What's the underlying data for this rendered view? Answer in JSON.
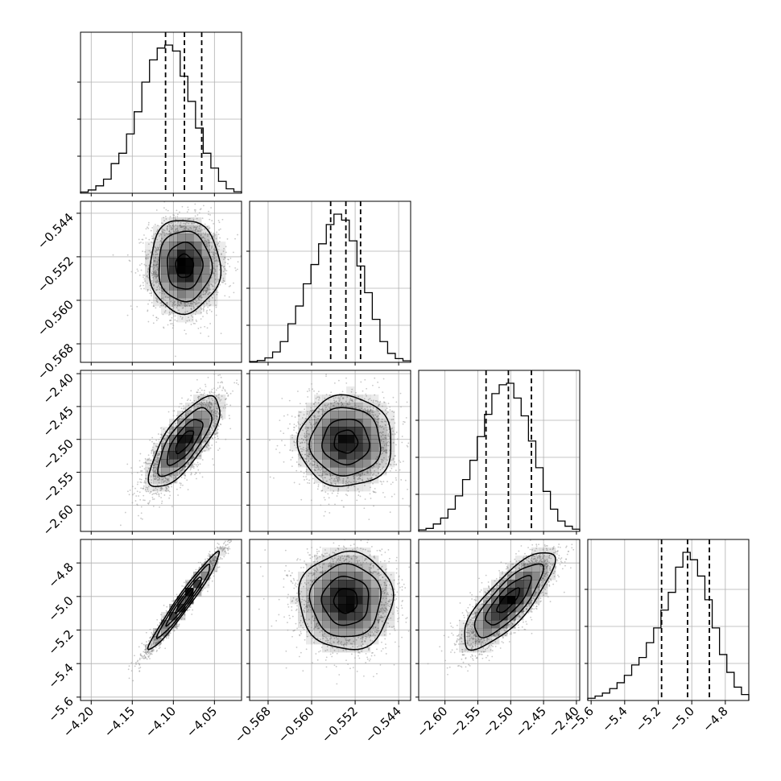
{
  "chart_data": {
    "type": "corner",
    "parameters": [
      {
        "ticks": [
          -4.2,
          -4.15,
          -4.1,
          -4.05
        ],
        "tick_labels": [
          "−4.20",
          "−4.15",
          "−4.10",
          "−4.05"
        ],
        "range": [
          -4.213,
          -4.017
        ],
        "quantiles": [
          -4.1095,
          -4.0865,
          -4.0655
        ],
        "hist_counts": [
          0.008,
          0.022,
          0.05,
          0.095,
          0.2,
          0.27,
          0.4,
          0.55,
          0.75,
          0.9,
          0.98,
          1.0,
          0.96,
          0.79,
          0.62,
          0.44,
          0.27,
          0.17,
          0.08,
          0.03,
          0.01
        ]
      },
      {
        "ticks": [
          -0.568,
          -0.56,
          -0.552,
          -0.544
        ],
        "tick_labels": [
          "−0.568",
          "−0.560",
          "−0.552",
          "−0.544"
        ],
        "range": [
          -0.5714,
          -0.5418
        ],
        "quantiles": [
          -0.5565,
          -0.5537,
          -0.551
        ],
        "hist_counts": [
          0.005,
          0.012,
          0.03,
          0.07,
          0.14,
          0.26,
          0.38,
          0.53,
          0.66,
          0.8,
          0.93,
          1.0,
          0.96,
          0.82,
          0.65,
          0.47,
          0.29,
          0.14,
          0.06,
          0.025,
          0.01
        ]
      },
      {
        "ticks": [
          -2.6,
          -2.55,
          -2.5,
          -2.45,
          -2.4
        ],
        "tick_labels": [
          "−2.60",
          "−2.55",
          "−2.50",
          "−2.45",
          "−2.40"
        ],
        "range": [
          -2.64,
          -2.395
        ],
        "quantiles": [
          -2.5375,
          -2.5035,
          -2.4685
        ],
        "hist_counts": [
          0.01,
          0.02,
          0.05,
          0.09,
          0.15,
          0.24,
          0.35,
          0.48,
          0.64,
          0.79,
          0.93,
          0.99,
          1.0,
          0.9,
          0.78,
          0.61,
          0.43,
          0.27,
          0.15,
          0.07,
          0.035,
          0.015
        ]
      },
      {
        "ticks": [
          -5.6,
          -5.4,
          -5.2,
          -5.0,
          -4.8
        ],
        "tick_labels": [
          "−5.6",
          "−5.4",
          "−5.2",
          "−5.0",
          "−4.8"
        ],
        "range": [
          -5.62,
          -4.66
        ],
        "quantiles": [
          -5.18,
          -5.025,
          -4.895
        ],
        "hist_counts": [
          0.015,
          0.03,
          0.05,
          0.08,
          0.12,
          0.17,
          0.24,
          0.29,
          0.39,
          0.49,
          0.61,
          0.73,
          0.9,
          1.0,
          0.95,
          0.84,
          0.68,
          0.49,
          0.31,
          0.19,
          0.09,
          0.04
        ]
      }
    ],
    "pairs": [
      {
        "x": 0,
        "y": 1,
        "center": [
          -4.0865,
          -0.5537
        ],
        "sd": [
          0.0215,
          0.0043
        ],
        "rho": 0.0
      },
      {
        "x": 0,
        "y": 2,
        "center": [
          -4.0865,
          -2.5035
        ],
        "sd": [
          0.0215,
          0.0345
        ],
        "rho": 0.75
      },
      {
        "x": 1,
        "y": 2,
        "center": [
          -0.5537,
          -2.5035
        ],
        "sd": [
          0.0043,
          0.0345
        ],
        "rho": 0.0
      },
      {
        "x": 0,
        "y": 3,
        "center": [
          -4.0865,
          -5.025
        ],
        "sd": [
          0.0215,
          0.145
        ],
        "rho": 0.97
      },
      {
        "x": 1,
        "y": 3,
        "center": [
          -0.5537,
          -5.025
        ],
        "sd": [
          0.0043,
          0.145
        ],
        "rho": 0.0
      },
      {
        "x": 2,
        "y": 3,
        "center": [
          -2.5035,
          -5.025
        ],
        "sd": [
          0.0345,
          0.145
        ],
        "rho": 0.8
      }
    ],
    "contour_levels_sigma": [
      0.5,
      1.0,
      1.5,
      2.0
    ],
    "grid": true,
    "colors": {
      "line": "#000000",
      "grid": "#b0b0b0",
      "points": "#9a9a9a",
      "density": "#000000"
    }
  }
}
